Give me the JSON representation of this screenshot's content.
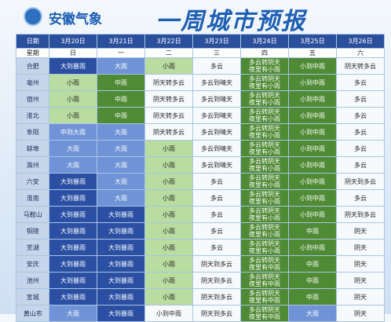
{
  "header": {
    "logo_text": "安徽气象",
    "title": "一周城市预报"
  },
  "table": {
    "columns": [
      "日期",
      "3月20日",
      "3月21日",
      "3月22日",
      "3月23日",
      "3月24日",
      "3月25日",
      "3月26日"
    ],
    "weekdays": [
      "星期",
      "日",
      "一",
      "二",
      "三",
      "四",
      "五",
      "六"
    ],
    "rows": [
      [
        "合肥",
        "大到暴雨",
        "大雨",
        "小雨",
        "多云",
        "多云转阴天夜里有小雨",
        "小到中雨",
        "阴天转多云"
      ],
      [
        "亳州",
        "小雨",
        "中雨",
        "阴天转多云",
        "多云到晴天",
        "多云转阴天夜里有小雨",
        "小到中雨",
        "多云"
      ],
      [
        "宿州",
        "小雨",
        "中雨",
        "阴天转多云",
        "多云到晴天",
        "多云转阴天夜里有小雨",
        "小到中雨",
        "多云"
      ],
      [
        "淮北",
        "小雨",
        "中雨",
        "阴天转多云",
        "多云到晴天",
        "多云转阴天夜里有小雨",
        "小到中雨",
        "多云"
      ],
      [
        "阜阳",
        "中到大雨",
        "大雨",
        "阴天转多云",
        "多云到晴天",
        "多云转阴天夜里有小雨",
        "小到中雨",
        "多云"
      ],
      [
        "蚌埠",
        "大雨",
        "大雨",
        "小雨",
        "多云到晴天",
        "多云转阴天夜里有小雨",
        "小到中雨",
        "多云"
      ],
      [
        "滁州",
        "大雨",
        "大雨",
        "小雨",
        "多云到晴天",
        "多云转阴天夜里有小雨",
        "小到中雨",
        "多云"
      ],
      [
        "六安",
        "大到暴雨",
        "大雨",
        "小雨",
        "多云",
        "多云转阴天夜里有小雨",
        "小到中雨",
        "阴天到多云"
      ],
      [
        "淮南",
        "大到暴雨",
        "大雨",
        "小雨",
        "多云",
        "多云转阴天夜里有小雨",
        "小到中雨",
        "多云"
      ],
      [
        "马鞍山",
        "大到暴雨",
        "大到暴雨",
        "小雨",
        "多云",
        "多云转阴天夜里有小雨",
        "小到中雨",
        "阴天到多云"
      ],
      [
        "铜陵",
        "大到暴雨",
        "大到暴雨",
        "小雨",
        "多云",
        "多云转阴天夜里有小雨",
        "中雨",
        "阴天"
      ],
      [
        "芜湖",
        "大到暴雨",
        "大到暴雨",
        "小雨",
        "多云",
        "多云转阴天夜里有小雨",
        "小到中雨",
        "阴天"
      ],
      [
        "安庆",
        "大到暴雨",
        "大到暴雨",
        "小雨",
        "阴天到多云",
        "多云转阴天夜里有中雨",
        "中雨",
        "阴天"
      ],
      [
        "池州",
        "大到暴雨",
        "大到暴雨",
        "小雨",
        "阴天到多云",
        "多云转阴天夜里有中雨",
        "中雨",
        "阴天"
      ],
      [
        "宣城",
        "大到暴雨",
        "大到暴雨",
        "小雨",
        "阴天到多云",
        "多云转阴天夜里有中雨",
        "中雨",
        "阴天"
      ],
      [
        "黄山市",
        "大雨",
        "大到暴雨",
        "小到中雨",
        "阴天到多云",
        "多云转阴天夜里有中雨",
        "大雨",
        "阴天"
      ]
    ]
  }
}
